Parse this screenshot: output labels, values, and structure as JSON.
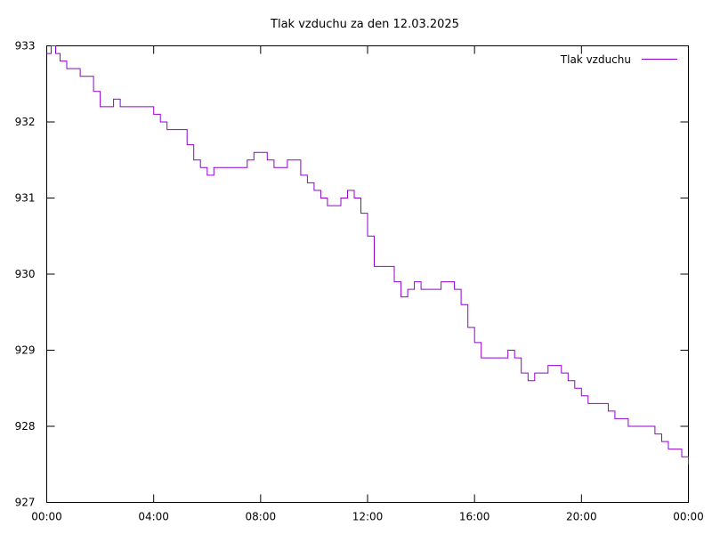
{
  "chart_data": {
    "type": "line",
    "title": "Tlak vzduchu za den 12.03.2025",
    "xlabel": "",
    "ylabel": "",
    "xlim": [
      "00:00",
      "24:00"
    ],
    "ylim": [
      927,
      933
    ],
    "grid": false,
    "legend_position": "top-right",
    "x_tick_labels": [
      "00:00",
      "04:00",
      "08:00",
      "12:00",
      "16:00",
      "20:00",
      "00:00"
    ],
    "y_tick_labels": [
      "927",
      "928",
      "929",
      "930",
      "931",
      "932",
      "933"
    ],
    "colors": {
      "series": "#9400d3",
      "axis": "#000000"
    },
    "series": [
      {
        "name": "Tlak vzduchu",
        "x": [
          "00:00",
          "00:10",
          "00:20",
          "00:30",
          "00:45",
          "01:00",
          "01:15",
          "01:30",
          "01:45",
          "02:00",
          "02:15",
          "02:30",
          "02:45",
          "03:00",
          "03:15",
          "03:30",
          "03:45",
          "04:00",
          "04:15",
          "04:30",
          "04:45",
          "05:00",
          "05:15",
          "05:30",
          "05:45",
          "06:00",
          "06:15",
          "06:30",
          "06:45",
          "07:00",
          "07:15",
          "07:30",
          "07:45",
          "08:00",
          "08:15",
          "08:30",
          "08:45",
          "09:00",
          "09:15",
          "09:30",
          "09:45",
          "10:00",
          "10:15",
          "10:30",
          "10:45",
          "11:00",
          "11:15",
          "11:30",
          "11:45",
          "12:00",
          "12:15",
          "12:30",
          "12:45",
          "13:00",
          "13:15",
          "13:30",
          "13:45",
          "14:00",
          "14:15",
          "14:30",
          "14:45",
          "15:00",
          "15:15",
          "15:30",
          "15:45",
          "16:00",
          "16:15",
          "16:30",
          "16:45",
          "17:00",
          "17:15",
          "17:30",
          "17:45",
          "18:00",
          "18:15",
          "18:30",
          "18:45",
          "19:00",
          "19:15",
          "19:30",
          "19:45",
          "20:00",
          "20:15",
          "20:30",
          "20:45",
          "21:00",
          "21:15",
          "21:30",
          "21:45",
          "22:00",
          "22:15",
          "22:30",
          "22:45",
          "23:00",
          "23:15",
          "23:30",
          "23:45",
          "24:00"
        ],
        "values": [
          932.9,
          933.0,
          932.9,
          932.8,
          932.7,
          932.7,
          932.6,
          932.6,
          932.4,
          932.2,
          932.2,
          932.3,
          932.2,
          932.2,
          932.2,
          932.2,
          932.2,
          932.1,
          932.0,
          931.9,
          931.9,
          931.9,
          931.7,
          931.5,
          931.4,
          931.3,
          931.4,
          931.4,
          931.4,
          931.4,
          931.4,
          931.5,
          931.6,
          931.6,
          931.5,
          931.4,
          931.4,
          931.5,
          931.5,
          931.3,
          931.2,
          931.1,
          931.0,
          930.9,
          930.9,
          931.0,
          931.1,
          931.0,
          930.8,
          930.5,
          930.1,
          930.1,
          930.1,
          929.9,
          929.7,
          929.8,
          929.9,
          929.8,
          929.8,
          929.8,
          929.9,
          929.9,
          929.8,
          929.6,
          929.3,
          929.1,
          928.9,
          928.9,
          928.9,
          928.9,
          929.0,
          928.9,
          928.7,
          928.6,
          928.7,
          928.7,
          928.8,
          928.8,
          928.7,
          928.6,
          928.5,
          928.4,
          928.3,
          928.3,
          928.3,
          928.2,
          928.1,
          928.1,
          928.0,
          928.0,
          928.0,
          928.0,
          927.9,
          927.8,
          927.7,
          927.7,
          927.6,
          927.5
        ]
      }
    ]
  }
}
